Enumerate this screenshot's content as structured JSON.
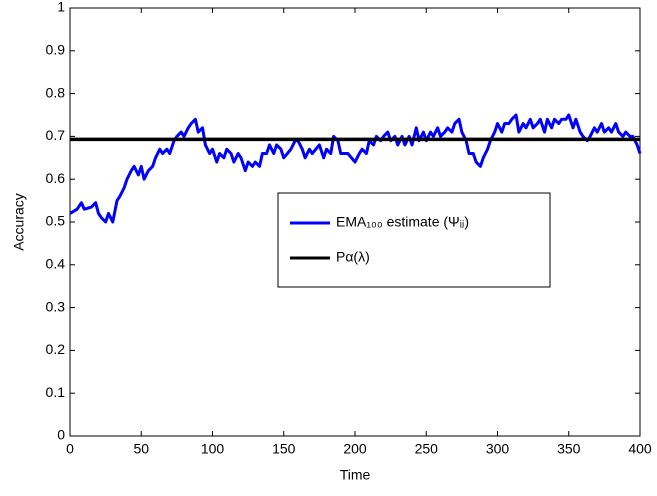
{
  "chart_data": {
    "type": "line",
    "xlabel": "Time",
    "ylabel": "Accuracy",
    "xlim": [
      0,
      400
    ],
    "xticks": [
      0,
      50,
      100,
      150,
      200,
      250,
      300,
      350,
      400
    ],
    "ylim": [
      0,
      1
    ],
    "yticks": [
      0,
      0.1,
      0.2,
      0.3,
      0.4,
      0.5,
      0.6,
      0.7,
      0.8,
      0.9,
      1
    ],
    "legend": "center-right",
    "series": [
      {
        "name": "EMA₁₀₀ estimate  (Ψᵢⱼ)",
        "color": "#0000ff",
        "x": [
          0,
          5,
          8,
          10,
          15,
          18,
          20,
          22,
          25,
          27,
          30,
          33,
          35,
          38,
          40,
          43,
          45,
          48,
          50,
          52,
          55,
          58,
          60,
          63,
          65,
          68,
          70,
          73,
          75,
          78,
          80,
          83,
          85,
          88,
          90,
          93,
          95,
          98,
          100,
          103,
          105,
          108,
          110,
          113,
          115,
          118,
          120,
          123,
          125,
          128,
          130,
          133,
          135,
          138,
          140,
          143,
          145,
          148,
          150,
          155,
          158,
          160,
          163,
          165,
          168,
          170,
          175,
          178,
          180,
          183,
          185,
          188,
          190,
          195,
          200,
          203,
          205,
          208,
          210,
          213,
          215,
          218,
          220,
          223,
          225,
          228,
          230,
          233,
          235,
          238,
          240,
          243,
          245,
          248,
          250,
          253,
          255,
          258,
          260,
          263,
          265,
          268,
          270,
          273,
          275,
          278,
          280,
          283,
          285,
          288,
          290,
          293,
          295,
          298,
          300,
          303,
          305,
          308,
          310,
          313,
          315,
          318,
          320,
          323,
          325,
          328,
          330,
          333,
          335,
          338,
          340,
          343,
          345,
          348,
          350,
          353,
          355,
          358,
          360,
          363,
          365,
          368,
          370,
          373,
          375,
          378,
          380,
          383,
          385,
          388,
          390,
          393,
          395,
          398,
          400
        ],
        "values": [
          0.52,
          0.53,
          0.545,
          0.53,
          0.535,
          0.545,
          0.52,
          0.51,
          0.5,
          0.52,
          0.5,
          0.55,
          0.56,
          0.58,
          0.6,
          0.62,
          0.63,
          0.61,
          0.63,
          0.6,
          0.62,
          0.63,
          0.65,
          0.67,
          0.66,
          0.67,
          0.66,
          0.69,
          0.7,
          0.71,
          0.7,
          0.72,
          0.73,
          0.74,
          0.71,
          0.72,
          0.68,
          0.66,
          0.67,
          0.64,
          0.66,
          0.65,
          0.67,
          0.66,
          0.64,
          0.66,
          0.65,
          0.62,
          0.64,
          0.63,
          0.64,
          0.63,
          0.66,
          0.66,
          0.68,
          0.66,
          0.68,
          0.67,
          0.65,
          0.67,
          0.69,
          0.69,
          0.67,
          0.65,
          0.67,
          0.66,
          0.68,
          0.65,
          0.67,
          0.66,
          0.7,
          0.69,
          0.66,
          0.66,
          0.64,
          0.66,
          0.67,
          0.66,
          0.69,
          0.68,
          0.7,
          0.69,
          0.7,
          0.71,
          0.69,
          0.7,
          0.68,
          0.7,
          0.68,
          0.7,
          0.68,
          0.72,
          0.69,
          0.71,
          0.69,
          0.71,
          0.7,
          0.72,
          0.7,
          0.71,
          0.72,
          0.71,
          0.73,
          0.74,
          0.71,
          0.69,
          0.66,
          0.66,
          0.64,
          0.63,
          0.65,
          0.67,
          0.69,
          0.71,
          0.73,
          0.71,
          0.73,
          0.73,
          0.74,
          0.75,
          0.71,
          0.73,
          0.72,
          0.74,
          0.72,
          0.73,
          0.74,
          0.71,
          0.74,
          0.72,
          0.74,
          0.73,
          0.74,
          0.74,
          0.75,
          0.72,
          0.74,
          0.71,
          0.7,
          0.69,
          0.7,
          0.72,
          0.71,
          0.73,
          0.71,
          0.72,
          0.71,
          0.73,
          0.71,
          0.7,
          0.71,
          0.7,
          0.7,
          0.68,
          0.66
        ]
      },
      {
        "name": "Pα(λ)",
        "color": "#000000",
        "x": [
          0,
          400
        ],
        "values": [
          0.693,
          0.693
        ]
      }
    ]
  }
}
